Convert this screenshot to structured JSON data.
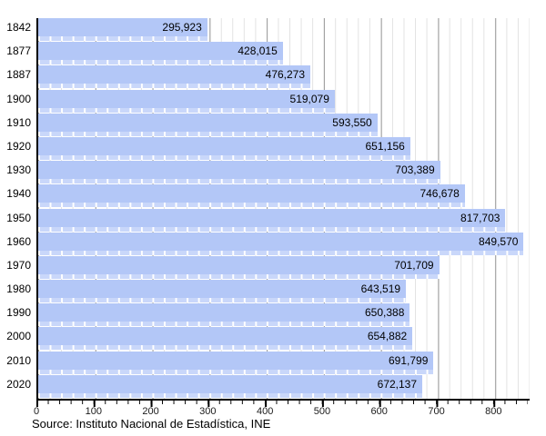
{
  "chart_data": {
    "type": "bar",
    "orientation": "horizontal",
    "title": "",
    "xlabel": "",
    "ylabel": "",
    "categories": [
      "1842",
      "1877",
      "1887",
      "1900",
      "1910",
      "1920",
      "1930",
      "1940",
      "1950",
      "1960",
      "1970",
      "1980",
      "1990",
      "2000",
      "2010",
      "2020"
    ],
    "values": [
      295923,
      428015,
      476273,
      519079,
      593550,
      651156,
      703389,
      746678,
      817703,
      849570,
      701709,
      643519,
      650388,
      654882,
      691799,
      672137
    ],
    "value_labels": [
      "295,923",
      "428,015",
      "476,273",
      "519,079",
      "593,550",
      "651,156",
      "703,389",
      "746,678",
      "817,703",
      "849,570",
      "701,709",
      "643,519",
      "650,388",
      "654,882",
      "691,799",
      "672,137"
    ],
    "x_axis": {
      "tick_labels": [
        "0",
        "100",
        "200",
        "300",
        "400",
        "500",
        "600",
        "700",
        "800"
      ],
      "tick_values": [
        0,
        100000,
        200000,
        300000,
        400000,
        500000,
        600000,
        700000,
        800000
      ],
      "axis_max": 860000,
      "minor_tick_interval": 20000,
      "scale_note": "tick labels are in thousands",
      "grid": "on"
    },
    "legend": "none",
    "source": "Source: Instituto Nacional de Estadística, INE",
    "colors": {
      "bar": "#b3c7f7",
      "bar_strip": "#c9d7fa",
      "major_gridline": "#999999",
      "minor_gridline": "#e2e2e2",
      "axis": "#000000",
      "text": "#000000"
    }
  }
}
